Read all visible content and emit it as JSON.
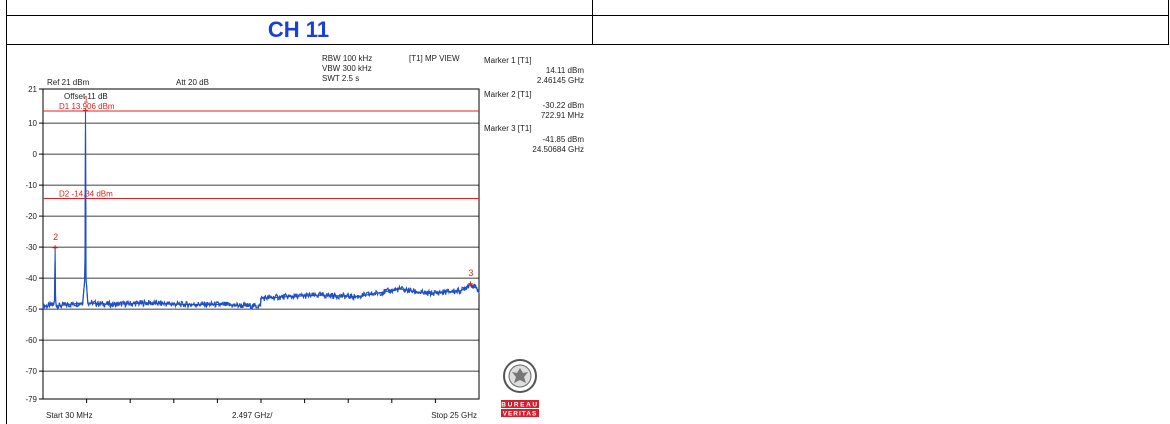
{
  "section": {
    "title": "CH 11"
  },
  "settings": {
    "rbw": "RBW 100 kHz",
    "vbw": "VBW 300 kHz",
    "swt": "SWT 2.5 s",
    "view": "[T1] MP VIEW",
    "ref": "Ref 21 dBm",
    "att": "Att  20 dB",
    "offset": "Offset 11 dB"
  },
  "markers": [
    {
      "label": "Marker 1 [T1]",
      "level": "14.11 dBm",
      "freq": "2.46145 GHz"
    },
    {
      "label": "Marker 2 [T1]",
      "level": "-30.22 dBm",
      "freq": "722.91 MHz"
    },
    {
      "label": "Marker 3 [T1]",
      "level": "-41.85 dBm",
      "freq": "24.50684 GHz"
    }
  ],
  "logo": {
    "text_top": "BUREAU",
    "text_bottom": "VERITAS",
    "seal_text": "BUREAU VERITAS 1828"
  },
  "chart_data": {
    "type": "line",
    "xlim_ghz": [
      0.03,
      25
    ],
    "ylim": [
      -79,
      21
    ],
    "y_ticks": [
      21,
      10,
      0,
      -10,
      -20,
      -30,
      -40,
      -50,
      -60,
      -70,
      -79
    ],
    "y_tick_labels": [
      "21",
      "10",
      "0",
      "-10",
      "-20",
      "-30",
      "-40",
      "-50",
      "-60",
      "-70",
      "-79"
    ],
    "x_labels": {
      "start": "Start 30 MHz",
      "mid": "2.497 GHz/",
      "stop": "Stop 25 GHz"
    },
    "grid": true,
    "display_lines": [
      {
        "label": "D1 13.906 dBm",
        "value": 13.906
      },
      {
        "label": "D2 -14.34 dBm",
        "value": -14.34
      }
    ],
    "marker_points": [
      {
        "id": "1",
        "x_ghz": 2.46145,
        "y": 14.11
      },
      {
        "id": "2",
        "x_ghz": 0.72291,
        "y": -30.22
      },
      {
        "id": "3",
        "x_ghz": 24.50684,
        "y": -41.85
      }
    ],
    "series": [
      {
        "x_ghz": [
          0.03,
          0.3,
          0.65,
          0.7,
          0.72291,
          0.75,
          0.8,
          1.5,
          2.3,
          2.43,
          2.46145,
          2.49,
          2.6,
          4.0,
          6.0,
          8.0,
          10.0,
          12.0,
          12.49,
          12.5,
          14.0,
          16.0,
          18.0,
          19.5,
          20.5,
          22.0,
          23.0,
          24.0,
          24.50684,
          25.0
        ],
        "y": [
          -49,
          -49,
          -48.5,
          -47,
          -30.22,
          -47,
          -49,
          -48.5,
          -48,
          -40,
          14.11,
          -40,
          -48,
          -48.5,
          -48,
          -48.5,
          -48.5,
          -49,
          -49,
          -46.5,
          -46,
          -45.5,
          -46,
          -44.5,
          -43.5,
          -45,
          -44.5,
          -44,
          -41.85,
          -44
        ]
      }
    ]
  }
}
